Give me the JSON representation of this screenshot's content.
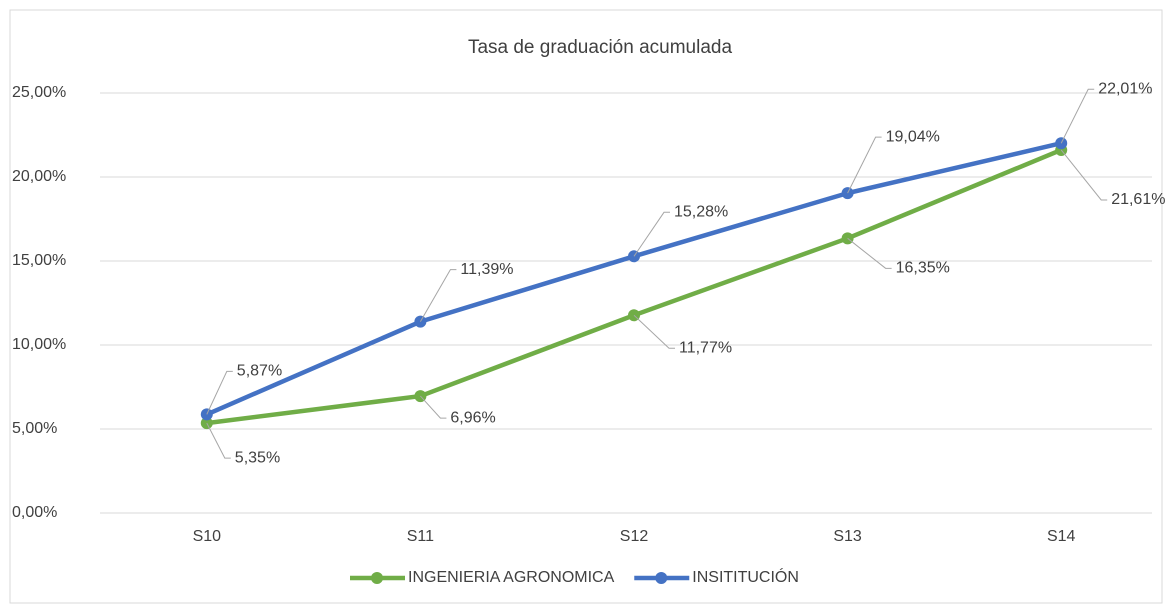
{
  "chart_data": {
    "type": "line",
    "title": "Tasa de graduación acumulada",
    "categories": [
      "S10",
      "S11",
      "S12",
      "S13",
      "S14"
    ],
    "series": [
      {
        "name": "INGENIERIA AGRONOMICA",
        "color": "#70ad47",
        "values": [
          5.35,
          6.96,
          11.77,
          16.35,
          21.61
        ],
        "value_labels": [
          "5,35%",
          "6,96%",
          "11,77%",
          "16,35%",
          "21,61%"
        ]
      },
      {
        "name": "INSITITUCIÓN",
        "color": "#4472c4",
        "values": [
          5.87,
          11.39,
          15.28,
          19.04,
          22.01
        ],
        "value_labels": [
          "5,87%",
          "11,39%",
          "15,28%",
          "19,04%",
          "22,01%"
        ]
      }
    ],
    "ylim": [
      0,
      25
    ],
    "yticks": [
      {
        "value": 0,
        "label": "0,00%"
      },
      {
        "value": 5,
        "label": "5,00%"
      },
      {
        "value": 10,
        "label": "10,00%"
      },
      {
        "value": 15,
        "label": "15,00%"
      },
      {
        "value": 20,
        "label": "20,00%"
      },
      {
        "value": 25,
        "label": "25,00%"
      }
    ],
    "grid": true,
    "legend": "bottom"
  }
}
